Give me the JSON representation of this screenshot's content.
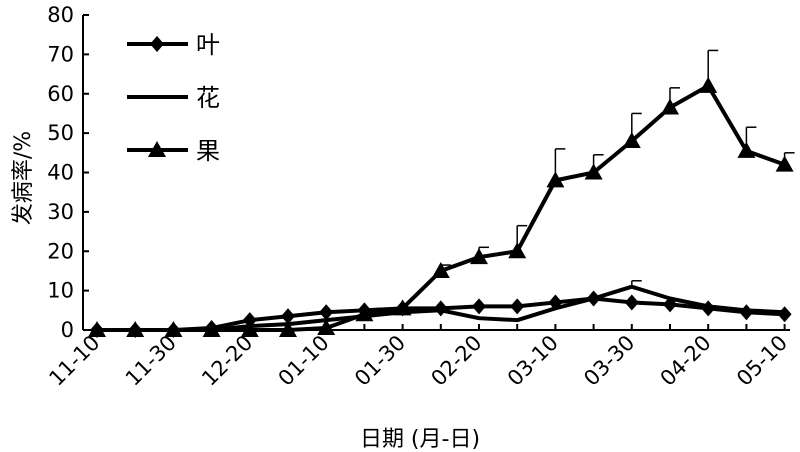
{
  "chart_data": {
    "type": "line",
    "xlabel": "日期 (月-日)",
    "ylabel": "发病率/%",
    "ylim": [
      0,
      80
    ],
    "yticks": [
      0,
      10,
      20,
      30,
      40,
      50,
      60,
      70,
      80
    ],
    "x": [
      "11-10",
      "11-20",
      "11-30",
      "12-10",
      "12-20",
      "12-30",
      "01-10",
      "01-20",
      "01-30",
      "02-10",
      "02-20",
      "03-01",
      "03-10",
      "03-20",
      "03-30",
      "04-10",
      "04-20",
      "04-30",
      "05-10"
    ],
    "x_tick_labels": [
      "11-10",
      "11-30",
      "12-20",
      "01-10",
      "01-30",
      "02-20",
      "03-10",
      "03-30",
      "04-20",
      "05-10"
    ],
    "legend_position": "top-left",
    "grid": false,
    "series": [
      {
        "name": "叶",
        "marker": "diamond",
        "values": [
          0,
          0,
          0,
          0.5,
          2.5,
          3.5,
          4.5,
          5,
          5.5,
          5.5,
          6,
          6,
          7,
          8,
          7,
          6.5,
          5.5,
          4.5,
          4
        ]
      },
      {
        "name": "花",
        "marker": "none",
        "values": [
          0,
          0,
          0,
          0,
          1,
          1.5,
          2.5,
          3.5,
          4.5,
          5,
          3,
          2.5,
          5.5,
          8,
          11,
          8,
          6,
          5,
          4.5
        ],
        "error": [
          0,
          0,
          0,
          0,
          0,
          0,
          0,
          0,
          0,
          0,
          0,
          0,
          0,
          0,
          1.5,
          0,
          0,
          0,
          0
        ]
      },
      {
        "name": "果",
        "marker": "triangle",
        "values": [
          0,
          0,
          0,
          0,
          0,
          0,
          0.5,
          4,
          5.5,
          15,
          18.5,
          20,
          38,
          40,
          48,
          56.5,
          62,
          45.5,
          42
        ],
        "error": [
          0,
          0,
          0,
          0,
          0,
          0,
          0,
          0,
          0,
          1.5,
          2.5,
          6.5,
          8,
          4.5,
          7,
          5,
          9,
          6,
          3
        ]
      }
    ]
  }
}
